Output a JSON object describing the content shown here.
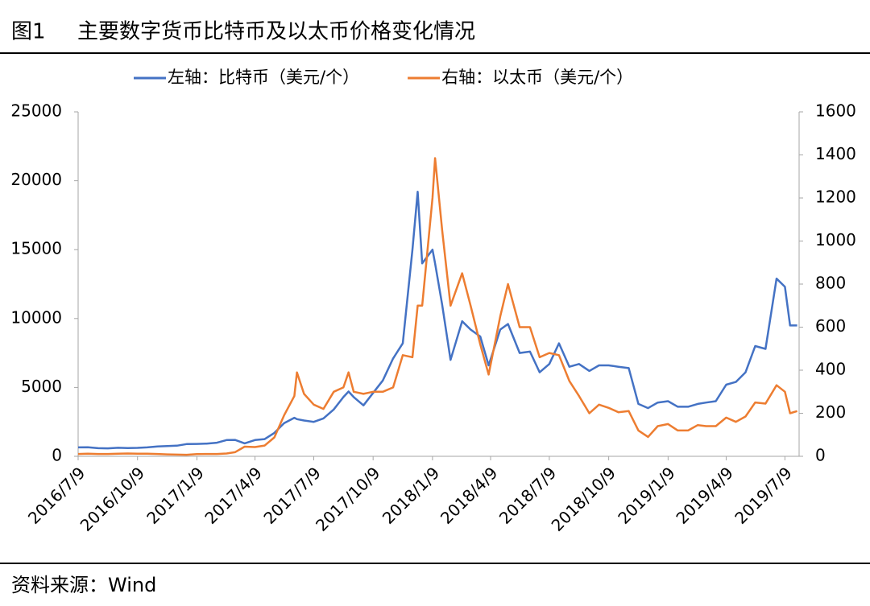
{
  "chart_data": {
    "type": "line",
    "figure_label": "图1",
    "title": "主要数字货币比特币及以太币价格变化情况",
    "source": "资料来源：Wind",
    "x": [
      "2016/7/9",
      "2016/7/24",
      "2016/8/9",
      "2016/8/24",
      "2016/9/9",
      "2016/9/24",
      "2016/10/9",
      "2016/10/24",
      "2016/11/9",
      "2016/11/24",
      "2016/12/9",
      "2016/12/24",
      "2017/1/9",
      "2017/1/24",
      "2017/2/9",
      "2017/2/24",
      "2017/3/9",
      "2017/3/24",
      "2017/4/9",
      "2017/4/24",
      "2017/5/9",
      "2017/5/24",
      "2017/6/9",
      "2017/6/13",
      "2017/6/24",
      "2017/7/9",
      "2017/7/24",
      "2017/8/9",
      "2017/8/24",
      "2017/9/1",
      "2017/9/9",
      "2017/9/24",
      "2017/10/9",
      "2017/10/24",
      "2017/11/9",
      "2017/11/24",
      "2017/12/9",
      "2017/12/17",
      "2017/12/24",
      "2018/1/9",
      "2018/1/13",
      "2018/1/24",
      "2018/2/6",
      "2018/2/24",
      "2018/3/9",
      "2018/3/24",
      "2018/4/6",
      "2018/4/24",
      "2018/5/6",
      "2018/5/24",
      "2018/6/9",
      "2018/6/24",
      "2018/7/9",
      "2018/7/24",
      "2018/8/9",
      "2018/8/24",
      "2018/9/9",
      "2018/9/24",
      "2018/10/9",
      "2018/10/24",
      "2018/11/9",
      "2018/11/24",
      "2018/12/9",
      "2018/12/24",
      "2019/1/9",
      "2019/1/24",
      "2019/2/9",
      "2019/2/24",
      "2019/3/9",
      "2019/3/24",
      "2019/4/9",
      "2019/4/24",
      "2019/5/9",
      "2019/5/24",
      "2019/6/9",
      "2019/6/26",
      "2019/7/9",
      "2019/7/17",
      "2019/7/28"
    ],
    "series": [
      {
        "name": "左轴：比特币（美元/个）",
        "color": "#4472c4",
        "axis": "y",
        "values": [
          650,
          660,
          590,
          580,
          620,
          600,
          615,
          650,
          710,
          740,
          770,
          890,
          900,
          920,
          990,
          1180,
          1190,
          940,
          1180,
          1250,
          1700,
          2400,
          2800,
          2700,
          2600,
          2500,
          2750,
          3400,
          4300,
          4700,
          4300,
          3700,
          4600,
          5500,
          7100,
          8200,
          15000,
          19200,
          14000,
          15000,
          14000,
          11000,
          7000,
          9800,
          9200,
          8700,
          6600,
          9200,
          9600,
          7500,
          7600,
          6100,
          6700,
          8200,
          6500,
          6700,
          6200,
          6600,
          6600,
          6500,
          6400,
          3800,
          3500,
          3900,
          4000,
          3600,
          3600,
          3800,
          3900,
          4000,
          5200,
          5400,
          6100,
          8000,
          7800,
          12900,
          12300,
          9500,
          9500
        ]
      },
      {
        "name": "右轴：以太币（美元/个）",
        "color": "#ed7d31",
        "axis": "y2",
        "values": [
          11,
          12,
          11,
          11,
          12,
          13,
          12,
          12,
          11,
          9,
          8,
          7,
          10,
          11,
          11,
          13,
          19,
          45,
          43,
          50,
          88,
          190,
          280,
          390,
          290,
          240,
          220,
          300,
          320,
          390,
          300,
          290,
          300,
          300,
          320,
          470,
          460,
          700,
          700,
          1200,
          1385,
          1050,
          700,
          850,
          700,
          520,
          380,
          650,
          800,
          600,
          600,
          460,
          480,
          470,
          350,
          280,
          200,
          240,
          225,
          205,
          210,
          120,
          90,
          140,
          150,
          120,
          120,
          145,
          140,
          140,
          180,
          160,
          185,
          250,
          245,
          330,
          300,
          200,
          210
        ]
      }
    ],
    "xlim": [
      "2016/7/9",
      "2019/7/31"
    ],
    "xticks": [
      "2016/7/9",
      "2016/10/9",
      "2017/1/9",
      "2017/4/9",
      "2017/7/9",
      "2017/10/9",
      "2018/1/9",
      "2018/4/9",
      "2018/7/9",
      "2018/10/9",
      "2019/1/9",
      "2019/4/9",
      "2019/7/9"
    ],
    "ylim": [
      0,
      25000
    ],
    "yticks": [
      0,
      5000,
      10000,
      15000,
      20000,
      25000
    ],
    "y2lim": [
      0,
      1600
    ],
    "y2ticks": [
      0,
      200,
      400,
      600,
      800,
      1000,
      1200,
      1400,
      1600
    ],
    "grid": false,
    "legend": "top"
  }
}
